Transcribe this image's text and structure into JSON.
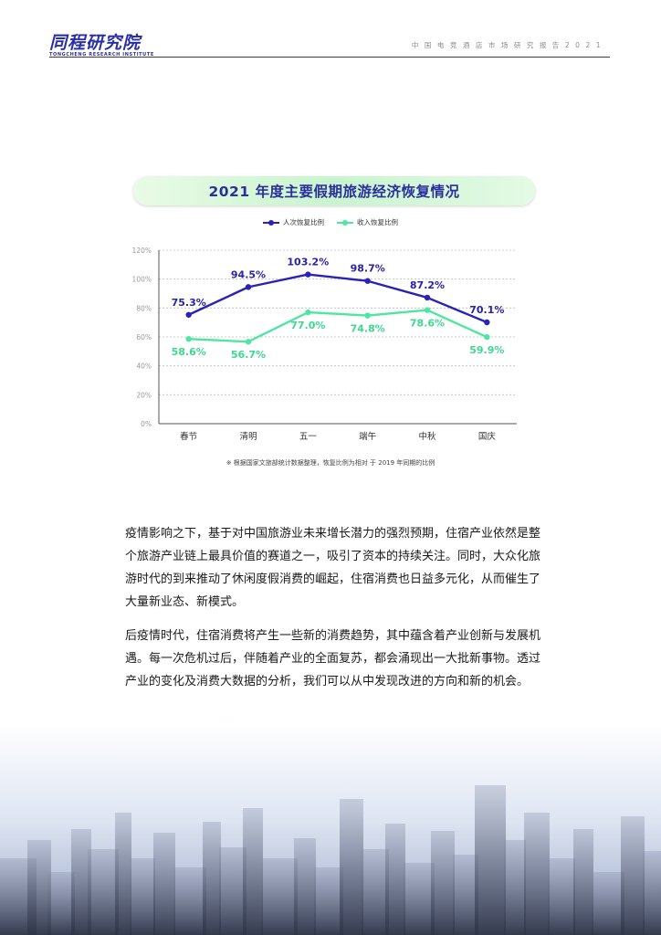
{
  "header": {
    "logo_cn": "同程研究院",
    "logo_en": "TONGCHENG RESEARCH INSTITUTE",
    "report_title": "中国电竞酒店市场研究报告2021"
  },
  "chart_title": "2021 年度主要假期旅游经济恢复情况",
  "chart_note": "※ 根据国家文旅部统计数据整理，恢复比例为相对 于 2019 年同期的比例",
  "chart_data": {
    "type": "line",
    "title": "2021 年度主要假期旅游经济恢复情况",
    "categories": [
      "春节",
      "清明",
      "五一",
      "端午",
      "中秋",
      "国庆"
    ],
    "series": [
      {
        "name": "人次恢复比例",
        "color": "#2a22b8",
        "values": [
          75.3,
          94.5,
          103.2,
          98.7,
          87.2,
          70.1
        ],
        "labels": [
          "75.3%",
          "94.5%",
          "103.2%",
          "98.7%",
          "87.2%",
          "70.1%"
        ]
      },
      {
        "name": "收入恢复比例",
        "color": "#4ee6a0",
        "values": [
          58.6,
          56.7,
          77.0,
          74.8,
          78.6,
          59.9
        ],
        "labels": [
          "58.6%",
          "56.7%",
          "77.0%",
          "74.8%",
          "78.6%",
          "59.9%"
        ]
      }
    ],
    "yticks": [
      0,
      20,
      40,
      60,
      80,
      100,
      120
    ],
    "ytick_labels": [
      "0%",
      "20%",
      "40%",
      "60%",
      "80%",
      "100%",
      "120%"
    ],
    "ylim": [
      0,
      120
    ],
    "grid": true,
    "legend": "top-center"
  },
  "paragraphs": [
    "疫情影响之下，基于对中国旅游业未来增长潜力的强烈预期，住宿产业依然是整个旅游产业链上最具价值的赛道之一，吸引了资本的持续关注。同时，大众化旅游时代的到来推动了休闲度假消费的崛起，住宿消费也日益多元化，从而催生了大量新业态、新模式。",
    "后疫情时代，住宿消费将产生一些新的消费趋势，其中蕴含着产业创新与发展机遇。每一次危机过后，伴随着产业的全面复苏，都会涌现出一大批新事物。透过产业的变化及消费大数据的分析，我们可以从中发现改进的方向和新的机会。"
  ]
}
